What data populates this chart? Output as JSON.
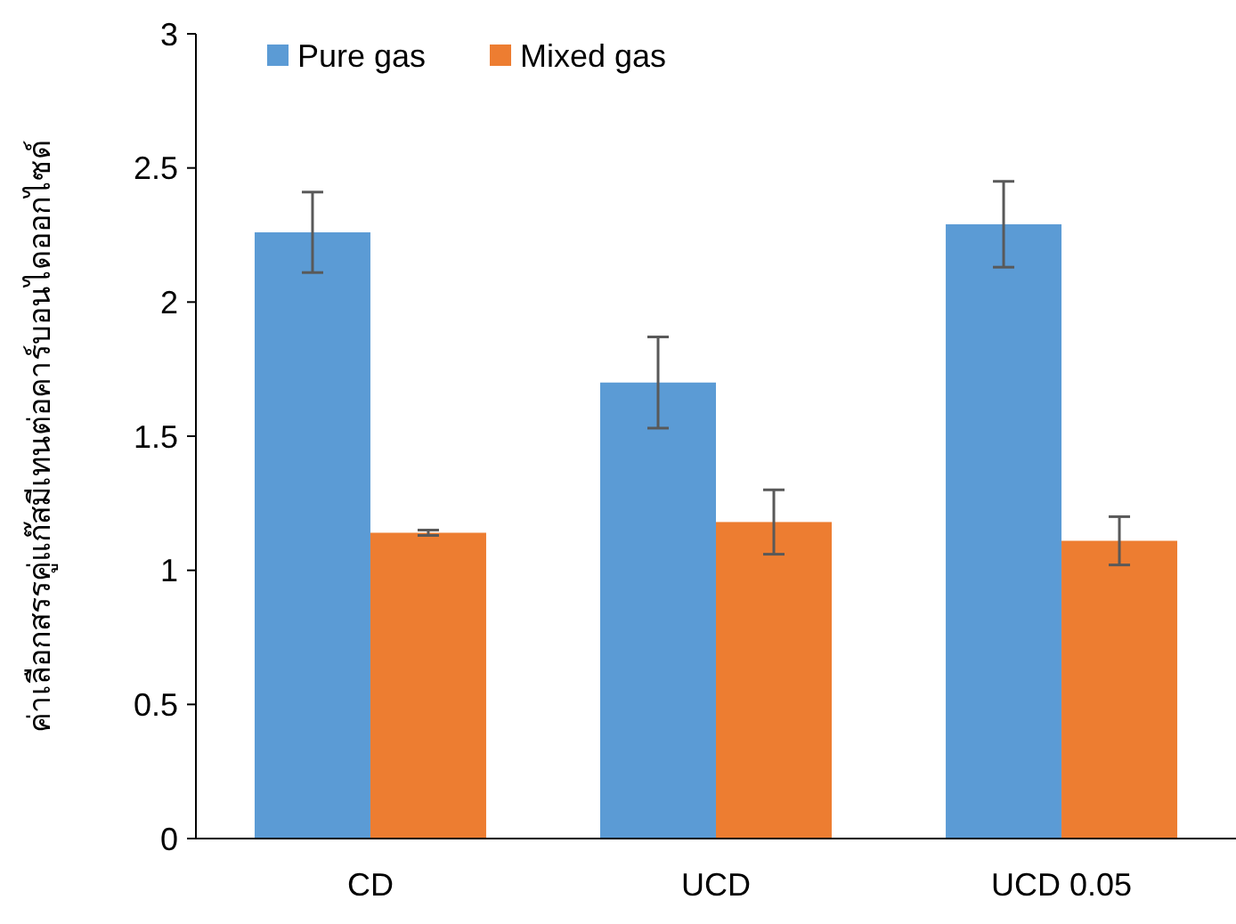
{
  "chart_data": {
    "type": "bar",
    "ylabel": "ค่าเลือกสรรคู่แก๊สมีเทนต่อคาร์บอนไดออกไซด์",
    "categories": [
      "CD",
      "UCD",
      "UCD 0.05"
    ],
    "series": [
      {
        "name": "Pure gas",
        "color": "#5b9bd5",
        "values": [
          2.26,
          1.7,
          2.29
        ],
        "errors": [
          0.15,
          0.17,
          0.16
        ]
      },
      {
        "name": "Mixed gas",
        "color": "#ed7d31",
        "values": [
          1.14,
          1.18,
          1.11
        ],
        "errors": [
          0.01,
          0.12,
          0.09
        ]
      }
    ],
    "ylim": [
      0,
      3
    ],
    "yticks": [
      0,
      0.5,
      1,
      1.5,
      2,
      2.5,
      3
    ],
    "grid": false,
    "legend": "top left"
  }
}
